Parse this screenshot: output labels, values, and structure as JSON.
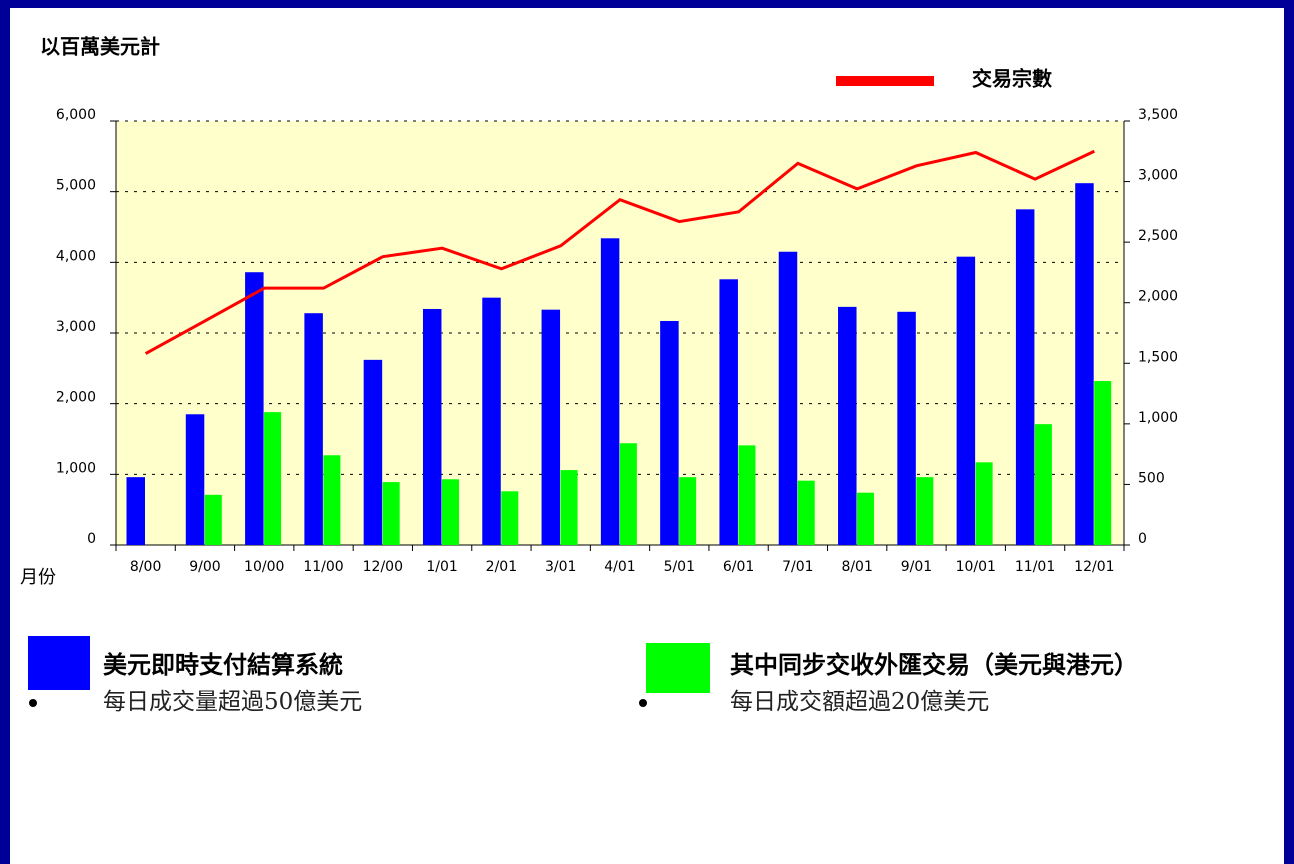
{
  "chart_data": {
    "type": "bar",
    "y_label": "以百萬美元計",
    "x_label": "月份",
    "categories": [
      "8/00",
      "9/00",
      "10/00",
      "11/00",
      "12/00",
      "1/01",
      "2/01",
      "3/01",
      "4/01",
      "5/01",
      "6/01",
      "7/01",
      "8/01",
      "9/01",
      "10/01",
      "11/01",
      "12/01"
    ],
    "series": [
      {
        "name": "美元即時支付結算系統",
        "color": "#0000ff",
        "type": "bar",
        "values": [
          960,
          1850,
          3860,
          3280,
          2620,
          3340,
          3500,
          3330,
          4340,
          3170,
          3760,
          4150,
          3370,
          3300,
          4080,
          4750,
          5120
        ]
      },
      {
        "name": "其中同步交收外匯交易（美元與港元）",
        "color": "#00ff00",
        "type": "bar",
        "values": [
          null,
          710,
          1880,
          1270,
          890,
          930,
          760,
          1060,
          1440,
          960,
          1410,
          910,
          740,
          960,
          1170,
          1710,
          2320
        ]
      },
      {
        "name": "交易宗數",
        "color": "#ff0000",
        "type": "line",
        "axis": "y2",
        "values": [
          1580,
          1850,
          2120,
          2120,
          2380,
          2450,
          2280,
          2470,
          2850,
          2670,
          2750,
          3150,
          2940,
          3130,
          3240,
          3020,
          3250
        ]
      }
    ],
    "legend_notes": [
      "每日成交量超過50億美元",
      "每日成交額超過20億美元"
    ],
    "ylim": [
      0,
      6000
    ],
    "yticks": [
      0,
      {
        "value": 1000,
        "label": "1,000"
      },
      {
        "value": 2000,
        "label": "2,000"
      },
      {
        "value": 3000,
        "label": "3,000"
      },
      {
        "value": 4000,
        "label": "4,000"
      },
      {
        "value": 5000,
        "label": "5,000"
      },
      {
        "value": 6000,
        "label": "6,000"
      }
    ],
    "y2lim": [
      0,
      3500
    ],
    "y2ticks": [
      0,
      500,
      {
        "value": 1000,
        "label": "1,000"
      },
      {
        "value": 1500,
        "label": "1,500"
      },
      {
        "value": 2000,
        "label": "2,000"
      },
      {
        "value": 2500,
        "label": "2,500"
      },
      {
        "value": 3000,
        "label": "3,000"
      },
      {
        "value": 3500,
        "label": "3,500"
      }
    ],
    "grid": true,
    "background": "#ffffcc"
  }
}
